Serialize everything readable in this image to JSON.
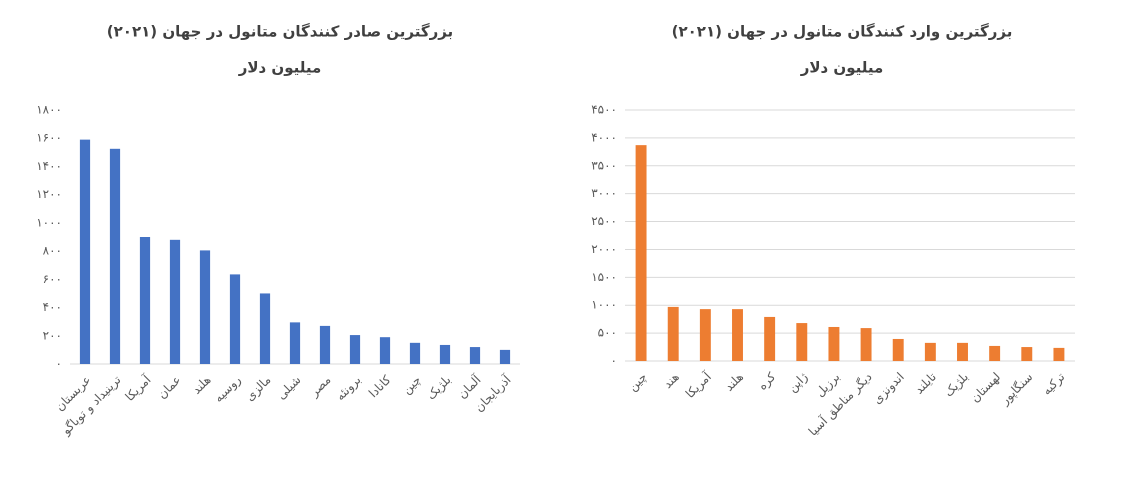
{
  "chart_data": [
    {
      "type": "bar",
      "title": "بزرگترین صادر کنندگان متانول در جهان (۲۰۲۱)",
      "subtitle": "میلیون دلار",
      "categories": [
        "عربستان",
        "ترینیداد و توباگو",
        "آمریکا",
        "عمان",
        "هلند",
        "روسیه",
        "مالزی",
        "شیلی",
        "مصر",
        "برونئه",
        "کانادا",
        "چین",
        "بلژیک",
        "آلمان",
        "آذربایجان"
      ],
      "values": [
        1590,
        1525,
        900,
        880,
        805,
        635,
        500,
        295,
        270,
        205,
        190,
        150,
        135,
        120,
        100
      ],
      "color": "#4472c4",
      "ylim": [
        0,
        1800
      ],
      "yticks": [
        {
          "value": 0,
          "label": "۰"
        },
        {
          "value": 200,
          "label": "۲۰۰"
        },
        {
          "value": 400,
          "label": "۴۰۰"
        },
        {
          "value": 600,
          "label": "۶۰۰"
        },
        {
          "value": 800,
          "label": "۸۰۰"
        },
        {
          "value": 1000,
          "label": "۱۰۰۰"
        },
        {
          "value": 1200,
          "label": "۱۲۰۰"
        },
        {
          "value": 1400,
          "label": "۱۴۰۰"
        },
        {
          "value": 1600,
          "label": "۱۶۰۰"
        },
        {
          "value": 1800,
          "label": "۱۸۰۰"
        }
      ],
      "grid": false
    },
    {
      "type": "bar",
      "title": "بزرگترین وارد کنندگان متانول در جهان (۲۰۲۱)",
      "subtitle": "میلیون دلار",
      "categories": [
        "چین",
        "هند",
        "آمریکا",
        "هلند",
        "کره",
        "ژاپن",
        "برزیل",
        "دیگر مناطق آسیا",
        "اندونزی",
        "تایلند",
        "بلژیک",
        "لهستان",
        "سنگاپور",
        "ترکیه"
      ],
      "values": [
        3870,
        970,
        930,
        930,
        790,
        680,
        610,
        590,
        395,
        325,
        325,
        270,
        250,
        235
      ],
      "color": "#ed7d31",
      "ylim": [
        0,
        4500
      ],
      "yticks": [
        {
          "value": 0,
          "label": "۰"
        },
        {
          "value": 500,
          "label": "۵۰۰"
        },
        {
          "value": 1000,
          "label": "۱۰۰۰"
        },
        {
          "value": 1500,
          "label": "۱۵۰۰"
        },
        {
          "value": 2000,
          "label": "۲۰۰۰"
        },
        {
          "value": 2500,
          "label": "۲۵۰۰"
        },
        {
          "value": 3000,
          "label": "۳۰۰۰"
        },
        {
          "value": 3500,
          "label": "۳۵۰۰"
        },
        {
          "value": 4000,
          "label": "۴۰۰۰"
        },
        {
          "value": 4500,
          "label": "۴۵۰۰"
        }
      ],
      "grid": true
    }
  ]
}
